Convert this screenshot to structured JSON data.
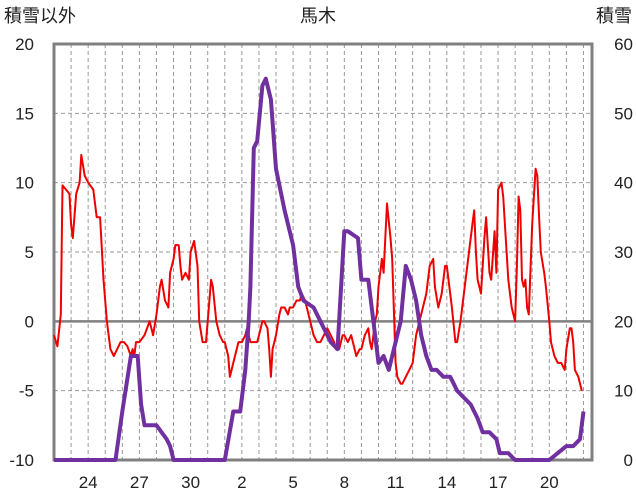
{
  "chart_data": {
    "type": "line",
    "title": "馬木",
    "y_left_label": "積雪以外",
    "y_right_label": "積雪",
    "ylim_left": [
      -10,
      20
    ],
    "ylim_right": [
      0,
      60
    ],
    "y_left_ticks": [
      "20",
      "15",
      "10",
      "5",
      "0",
      "-5",
      "-10"
    ],
    "y_right_ticks": [
      "60",
      "50",
      "40",
      "30",
      "20",
      "10",
      "0"
    ],
    "x_range": [
      22,
      53.5
    ],
    "x_ticks": [
      {
        "x": 24,
        "label": "24"
      },
      {
        "x": 27,
        "label": "27"
      },
      {
        "x": 30,
        "label": "30"
      },
      {
        "x": 33,
        "label": "2"
      },
      {
        "x": 36,
        "label": "5"
      },
      {
        "x": 39,
        "label": "8"
      },
      {
        "x": 42,
        "label": "11"
      },
      {
        "x": 45,
        "label": "14"
      },
      {
        "x": 48,
        "label": "17"
      },
      {
        "x": 51,
        "label": "20"
      }
    ],
    "grid": true,
    "colors": {
      "series_other": "#ee0000",
      "series_snow": "#7030a0",
      "grid": "#999999",
      "frame": "#808080"
    },
    "series": [
      {
        "axis": "left",
        "points": [
          [
            22.0,
            -1.0
          ],
          [
            22.2,
            -1.8
          ],
          [
            22.4,
            0.5
          ],
          [
            22.5,
            9.8
          ],
          [
            22.7,
            9.5
          ],
          [
            22.9,
            9.2
          ],
          [
            23.0,
            7.0
          ],
          [
            23.1,
            6.0
          ],
          [
            23.3,
            9.2
          ],
          [
            23.5,
            10.0
          ],
          [
            23.6,
            12.0
          ],
          [
            23.8,
            10.5
          ],
          [
            24.0,
            10.0
          ],
          [
            24.3,
            9.5
          ],
          [
            24.5,
            7.5
          ],
          [
            24.7,
            7.5
          ],
          [
            24.9,
            3.0
          ],
          [
            25.1,
            0.0
          ],
          [
            25.3,
            -2.0
          ],
          [
            25.5,
            -2.5
          ],
          [
            25.7,
            -2.0
          ],
          [
            25.9,
            -1.5
          ],
          [
            26.1,
            -1.5
          ],
          [
            26.3,
            -1.8
          ],
          [
            26.5,
            -2.5
          ],
          [
            26.6,
            -2.0
          ],
          [
            26.7,
            -2.5
          ],
          [
            26.8,
            -1.5
          ],
          [
            27.0,
            -1.5
          ],
          [
            27.3,
            -1.0
          ],
          [
            27.6,
            0.0
          ],
          [
            27.8,
            -1.0
          ],
          [
            28.0,
            0.5
          ],
          [
            28.2,
            2.5
          ],
          [
            28.3,
            3.0
          ],
          [
            28.5,
            1.5
          ],
          [
            28.7,
            1.0
          ],
          [
            28.8,
            3.5
          ],
          [
            29.0,
            4.5
          ],
          [
            29.1,
            5.5
          ],
          [
            29.3,
            5.5
          ],
          [
            29.4,
            4.0
          ],
          [
            29.5,
            3.0
          ],
          [
            29.7,
            3.5
          ],
          [
            29.9,
            3.0
          ],
          [
            30.0,
            5.0
          ],
          [
            30.2,
            5.8
          ],
          [
            30.4,
            4.0
          ],
          [
            30.5,
            0.0
          ],
          [
            30.7,
            -1.5
          ],
          [
            30.9,
            -1.5
          ],
          [
            31.0,
            0.0
          ],
          [
            31.2,
            3.0
          ],
          [
            31.3,
            2.5
          ],
          [
            31.5,
            0.0
          ],
          [
            31.7,
            -1.0
          ],
          [
            31.9,
            -1.5
          ],
          [
            32.0,
            -1.5
          ],
          [
            32.2,
            -2.5
          ],
          [
            32.3,
            -4.0
          ],
          [
            32.5,
            -3.0
          ],
          [
            32.7,
            -2.0
          ],
          [
            32.8,
            -1.5
          ],
          [
            33.0,
            -1.5
          ],
          [
            33.2,
            -1.0
          ],
          [
            33.3,
            -0.5
          ],
          [
            33.5,
            -1.5
          ],
          [
            33.7,
            -1.5
          ],
          [
            33.9,
            -1.5
          ],
          [
            34.0,
            -1.0
          ],
          [
            34.2,
            0.0
          ],
          [
            34.3,
            0.0
          ],
          [
            34.5,
            -0.5
          ],
          [
            34.6,
            -2.0
          ],
          [
            34.7,
            -4.0
          ],
          [
            34.8,
            -2.0
          ],
          [
            35.0,
            -1.0
          ],
          [
            35.2,
            0.5
          ],
          [
            35.3,
            1.0
          ],
          [
            35.5,
            1.0
          ],
          [
            35.7,
            0.5
          ],
          [
            35.8,
            1.0
          ],
          [
            36.0,
            1.0
          ],
          [
            36.2,
            1.5
          ],
          [
            36.4,
            1.5
          ],
          [
            36.5,
            2.0
          ],
          [
            36.7,
            1.5
          ],
          [
            36.9,
            0.5
          ],
          [
            37.0,
            0.0
          ],
          [
            37.2,
            -1.0
          ],
          [
            37.4,
            -1.5
          ],
          [
            37.6,
            -1.5
          ],
          [
            37.8,
            -1.0
          ],
          [
            38.0,
            -0.5
          ],
          [
            38.2,
            -1.0
          ],
          [
            38.4,
            -1.5
          ],
          [
            38.5,
            -2.0
          ],
          [
            38.7,
            -2.0
          ],
          [
            38.9,
            -1.0
          ],
          [
            39.0,
            -1.0
          ],
          [
            39.2,
            -1.5
          ],
          [
            39.4,
            -1.0
          ],
          [
            39.5,
            -1.5
          ],
          [
            39.7,
            -2.5
          ],
          [
            39.9,
            -2.0
          ],
          [
            40.0,
            -2.0
          ],
          [
            40.2,
            -1.0
          ],
          [
            40.4,
            -0.5
          ],
          [
            40.5,
            -1.5
          ],
          [
            40.6,
            -2.0
          ],
          [
            40.8,
            0.0
          ],
          [
            40.9,
            0.5
          ],
          [
            41.0,
            2.5
          ],
          [
            41.2,
            4.5
          ],
          [
            41.3,
            3.5
          ],
          [
            41.5,
            8.5
          ],
          [
            41.7,
            6.0
          ],
          [
            41.8,
            4.5
          ],
          [
            42.0,
            -3.0
          ],
          [
            42.1,
            -4.0
          ],
          [
            42.3,
            -4.5
          ],
          [
            42.4,
            -4.5
          ],
          [
            42.6,
            -4.0
          ],
          [
            42.8,
            -3.5
          ],
          [
            43.0,
            -3.0
          ],
          [
            43.2,
            -1.0
          ],
          [
            43.4,
            0.0
          ],
          [
            43.6,
            1.0
          ],
          [
            43.8,
            2.0
          ],
          [
            44.0,
            4.0
          ],
          [
            44.2,
            4.5
          ],
          [
            44.3,
            2.5
          ],
          [
            44.5,
            1.0
          ],
          [
            44.7,
            2.0
          ],
          [
            44.9,
            4.0
          ],
          [
            45.0,
            4.0
          ],
          [
            45.1,
            3.0
          ],
          [
            45.3,
            1.0
          ],
          [
            45.5,
            -1.5
          ],
          [
            45.6,
            -1.5
          ],
          [
            45.8,
            0.0
          ],
          [
            46.0,
            2.0
          ],
          [
            46.2,
            4.0
          ],
          [
            46.3,
            5.0
          ],
          [
            46.5,
            7.0
          ],
          [
            46.6,
            8.0
          ],
          [
            46.7,
            5.0
          ],
          [
            46.8,
            3.0
          ],
          [
            47.0,
            2.0
          ],
          [
            47.1,
            4.0
          ],
          [
            47.2,
            6.0
          ],
          [
            47.3,
            7.5
          ],
          [
            47.5,
            3.5
          ],
          [
            47.6,
            3.0
          ],
          [
            47.8,
            6.5
          ],
          [
            47.9,
            3.5
          ],
          [
            48.0,
            9.5
          ],
          [
            48.2,
            10.0
          ],
          [
            48.3,
            9.0
          ],
          [
            48.5,
            5.0
          ],
          [
            48.6,
            3.0
          ],
          [
            48.8,
            1.0
          ],
          [
            49.0,
            0.0
          ],
          [
            49.1,
            4.0
          ],
          [
            49.2,
            9.0
          ],
          [
            49.3,
            8.0
          ],
          [
            49.4,
            3.0
          ],
          [
            49.5,
            2.5
          ],
          [
            49.6,
            3.0
          ],
          [
            49.7,
            1.0
          ],
          [
            49.8,
            0.5
          ],
          [
            50.0,
            7.0
          ],
          [
            50.2,
            11.0
          ],
          [
            50.3,
            10.5
          ],
          [
            50.4,
            7.5
          ],
          [
            50.5,
            5.0
          ],
          [
            50.7,
            3.5
          ],
          [
            50.8,
            2.5
          ],
          [
            51.0,
            0.0
          ],
          [
            51.1,
            -1.5
          ],
          [
            51.3,
            -2.5
          ],
          [
            51.5,
            -3.0
          ],
          [
            51.7,
            -3.0
          ],
          [
            51.9,
            -3.5
          ],
          [
            52.0,
            -2.0
          ],
          [
            52.2,
            -0.5
          ],
          [
            52.3,
            -0.5
          ],
          [
            52.4,
            -1.5
          ],
          [
            52.5,
            -3.5
          ],
          [
            52.7,
            -4.0
          ],
          [
            52.9,
            -5.0
          ]
        ]
      },
      {
        "axis": "right",
        "points": [
          [
            22.0,
            0
          ],
          [
            25.6,
            0
          ],
          [
            26.0,
            7
          ],
          [
            26.5,
            15
          ],
          [
            26.9,
            15
          ],
          [
            27.1,
            8
          ],
          [
            27.3,
            5
          ],
          [
            27.5,
            5
          ],
          [
            28.0,
            5
          ],
          [
            28.3,
            4
          ],
          [
            28.6,
            3
          ],
          [
            28.8,
            2
          ],
          [
            29.0,
            0
          ],
          [
            31.5,
            0
          ],
          [
            32.0,
            0
          ],
          [
            32.5,
            7
          ],
          [
            32.9,
            7
          ],
          [
            33.2,
            13
          ],
          [
            33.4,
            20
          ],
          [
            33.5,
            25
          ],
          [
            33.7,
            45
          ],
          [
            33.9,
            46
          ],
          [
            34.2,
            54
          ],
          [
            34.4,
            55
          ],
          [
            34.7,
            52
          ],
          [
            35.0,
            42
          ],
          [
            35.5,
            36
          ],
          [
            36.0,
            31
          ],
          [
            36.3,
            25
          ],
          [
            36.6,
            23
          ],
          [
            37.2,
            22
          ],
          [
            37.6,
            20
          ],
          [
            38.2,
            17
          ],
          [
            38.6,
            16
          ],
          [
            39.0,
            33
          ],
          [
            39.2,
            33
          ],
          [
            39.8,
            32
          ],
          [
            40.0,
            26
          ],
          [
            40.4,
            26
          ],
          [
            40.6,
            22
          ],
          [
            41.0,
            14
          ],
          [
            41.3,
            15
          ],
          [
            41.6,
            13
          ],
          [
            42.3,
            20
          ],
          [
            42.6,
            28
          ],
          [
            42.9,
            26
          ],
          [
            43.2,
            23
          ],
          [
            43.5,
            18
          ],
          [
            43.8,
            15
          ],
          [
            44.1,
            13
          ],
          [
            44.4,
            13
          ],
          [
            44.8,
            12
          ],
          [
            45.2,
            12
          ],
          [
            45.4,
            11
          ],
          [
            45.6,
            10
          ],
          [
            46.0,
            9
          ],
          [
            46.4,
            8
          ],
          [
            46.8,
            6
          ],
          [
            47.1,
            4
          ],
          [
            47.5,
            4
          ],
          [
            47.9,
            3
          ],
          [
            48.1,
            1
          ],
          [
            48.6,
            1
          ],
          [
            49.0,
            0
          ],
          [
            49.5,
            0
          ],
          [
            50.0,
            0
          ],
          [
            51.0,
            0
          ],
          [
            51.5,
            1
          ],
          [
            52.0,
            2
          ],
          [
            52.4,
            2
          ],
          [
            52.8,
            3
          ],
          [
            53.0,
            7
          ]
        ]
      }
    ]
  }
}
